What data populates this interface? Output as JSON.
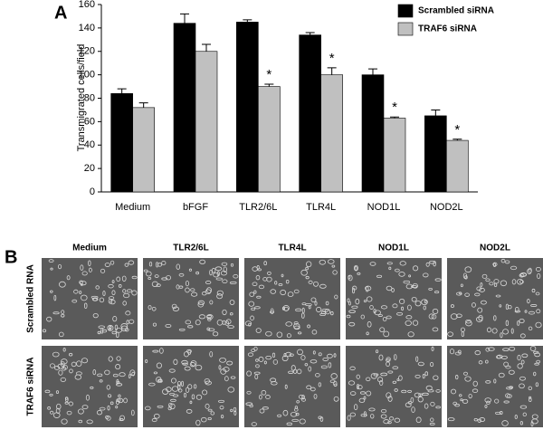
{
  "chart_data": {
    "type": "bar",
    "panel_label": "A",
    "ylabel": "Transmigrated cells/field",
    "categories": [
      "Medium",
      "bFGF",
      "TLR2/6L",
      "TLR4L",
      "NOD1L",
      "NOD2L"
    ],
    "series": [
      {
        "name": "Scrambled siRNA",
        "color": "#000000",
        "values": [
          84,
          144,
          145,
          134,
          100,
          65
        ],
        "errors": [
          4,
          8,
          2,
          2,
          5,
          5
        ]
      },
      {
        "name": "TRAF6 siRNA",
        "color": "#c0c0c0",
        "values": [
          72,
          120,
          90,
          100,
          63,
          44
        ],
        "errors": [
          4,
          6,
          2,
          6,
          1,
          1
        ],
        "markers": [
          null,
          null,
          "*",
          "*",
          "*",
          "*"
        ]
      }
    ],
    "ylim": [
      0,
      160
    ],
    "yticks": [
      0,
      20,
      40,
      60,
      80,
      100,
      120,
      140,
      160
    ],
    "grid": false,
    "legend": "top-right"
  },
  "micrographs": {
    "panel_label": "B",
    "columns": [
      "Medium",
      "TLR2/6L",
      "TLR4L",
      "NOD1L",
      "NOD2L"
    ],
    "rows": [
      "Scrambled RNA",
      "TRAF6 siRNA"
    ]
  }
}
